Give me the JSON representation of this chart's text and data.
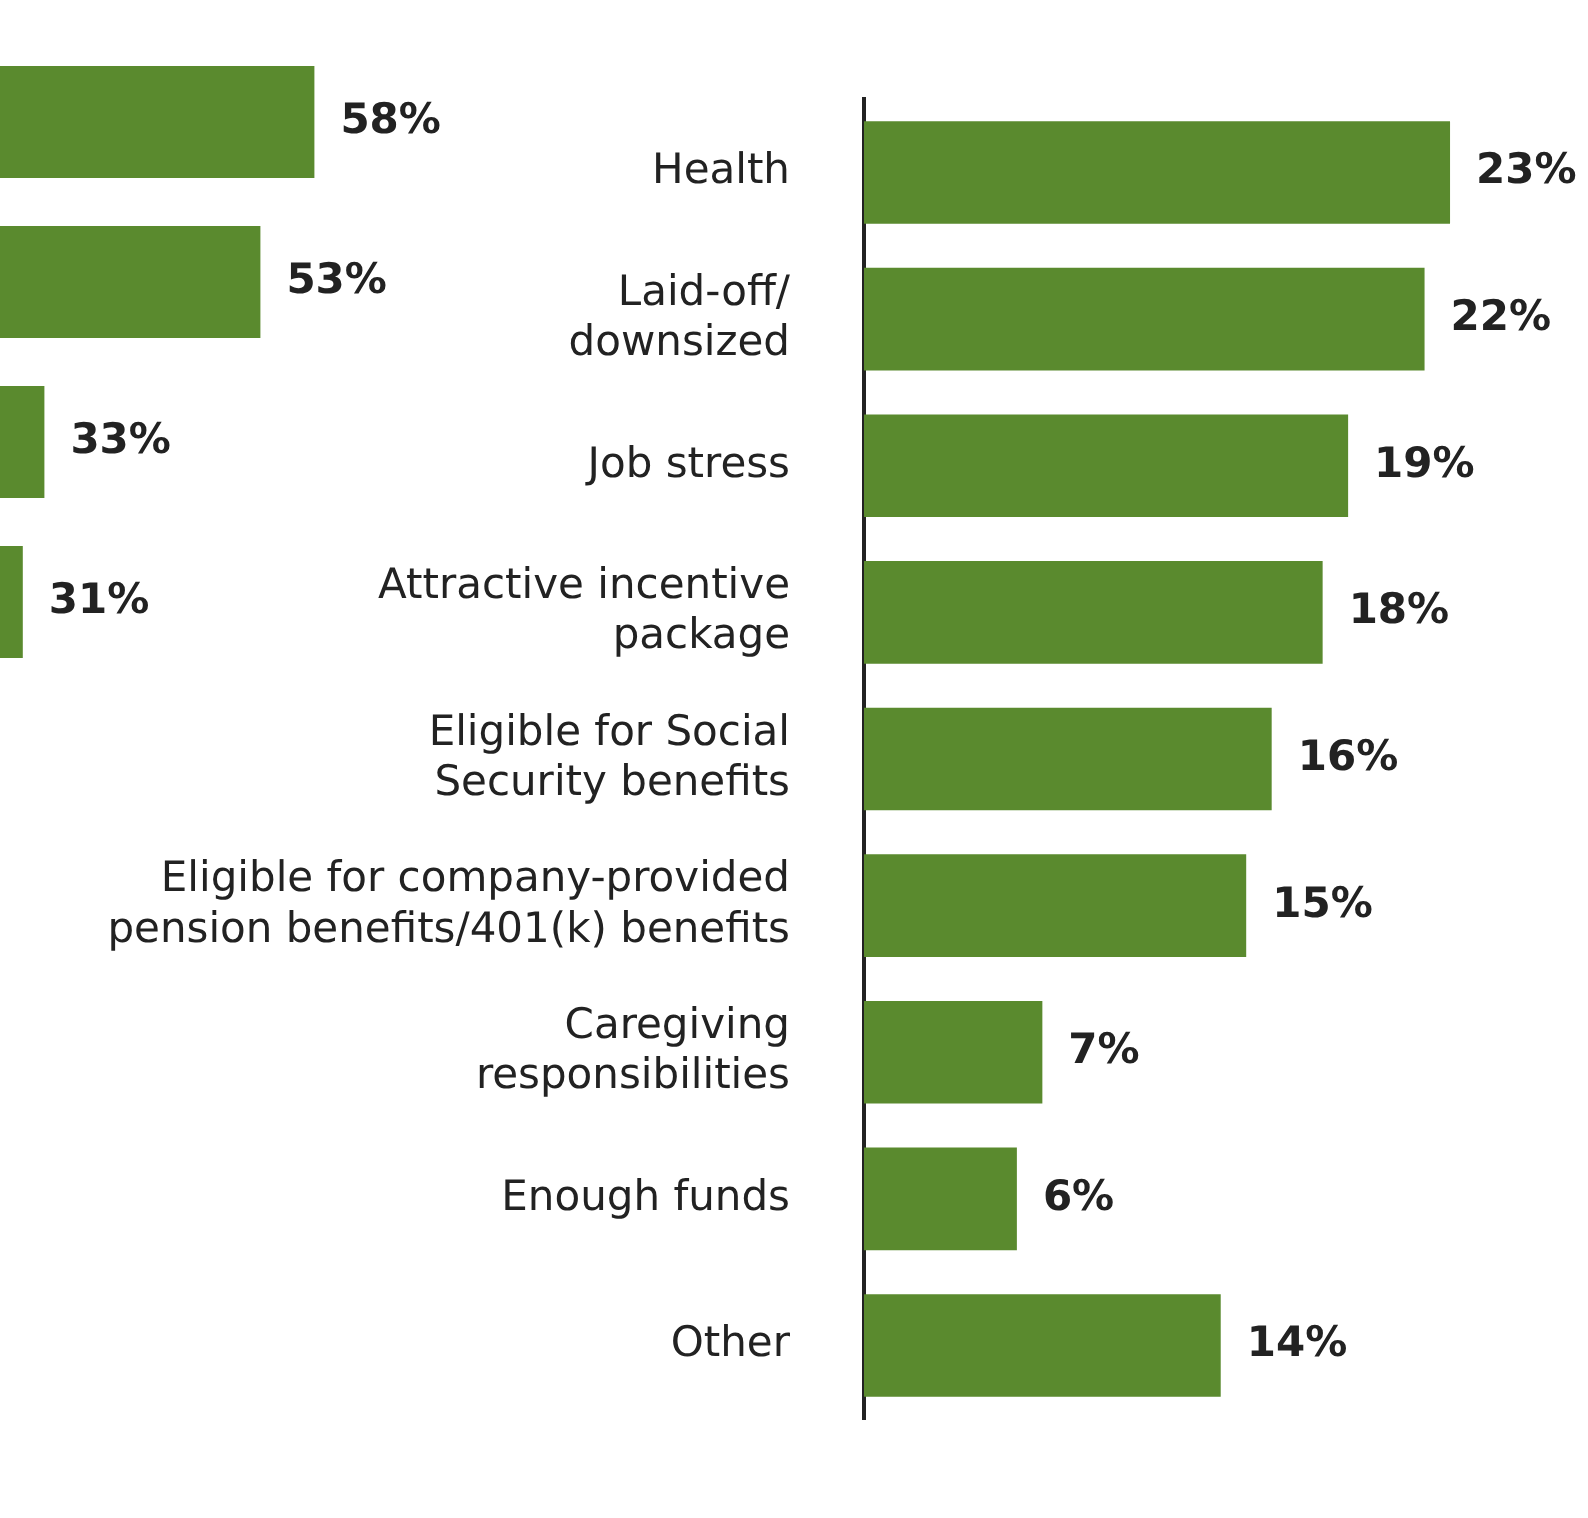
{
  "chart_data": [
    {
      "type": "bar",
      "orientation": "horizontal",
      "categories": [
        null,
        null,
        null,
        null
      ],
      "values": [
        58,
        53,
        33,
        31
      ],
      "value_labels": [
        "58%",
        "53%",
        "33%",
        "31%"
      ],
      "color": "#5a8a2e",
      "tick_labels": false
    },
    {
      "type": "bar",
      "orientation": "horizontal",
      "categories": [
        "Health",
        "Laid-off/\ndownsized",
        "Job stress",
        "Attractive incentive\npackage",
        "Eligible for Social\nSecurity benefits",
        "Eligible for company-provided\npension benefits/401(k) benefits",
        "Caregiving\nresponsibilities",
        "Enough funds",
        "Other"
      ],
      "values": [
        23,
        22,
        19,
        18,
        16,
        15,
        7,
        6,
        14
      ],
      "value_labels": [
        "23%",
        "22%",
        "19%",
        "18%",
        "16%",
        "15%",
        "7%",
        "6%",
        "14%"
      ],
      "color": "#5a8a2e",
      "tick_labels": "y"
    }
  ]
}
